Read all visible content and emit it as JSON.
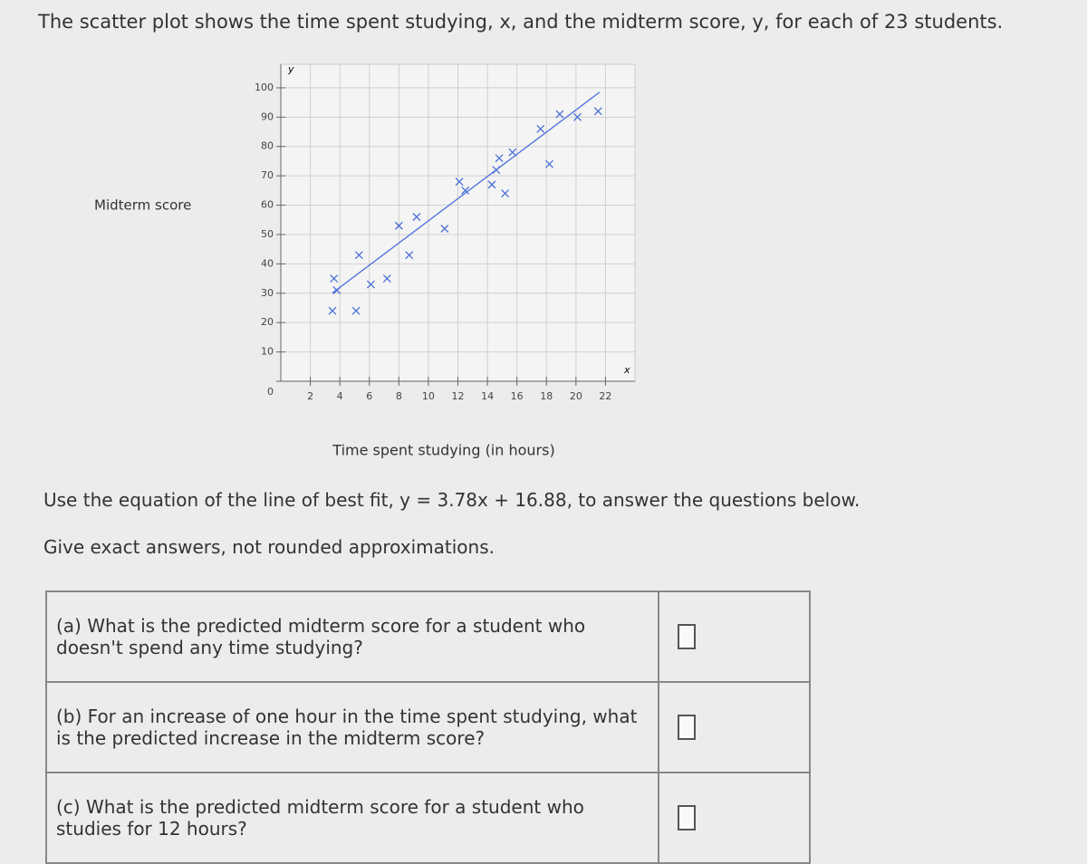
{
  "header": {
    "title": "The scatter plot shows the time spent studying, x, and the midterm score, y, for each of 23 students."
  },
  "chart_data": {
    "type": "scatter",
    "x_label": "Time spent studying (in hours)",
    "y_label": "Midterm score",
    "x_axis_symbol": "x",
    "y_axis_symbol": "y",
    "x": [
      3.6,
      3.5,
      5.1,
      5.3,
      3.8,
      6.1,
      7.2,
      8.7,
      8.0,
      9.2,
      11.1,
      12.1,
      12.5,
      14.3,
      15.2,
      14.6,
      14.8,
      15.7,
      18.2,
      17.6,
      18.9,
      20.1,
      21.5
    ],
    "values": [
      35,
      24,
      24,
      43,
      31,
      33,
      35,
      43,
      53,
      56,
      52,
      68,
      65,
      67,
      64,
      72,
      76,
      78,
      74,
      86,
      91,
      90,
      92
    ],
    "color": "#4a6fd8",
    "fit": {
      "x": [
        3.5,
        21.6
      ],
      "y": [
        30.1,
        98.5
      ]
    },
    "xlim": [
      0,
      24
    ],
    "ylim": [
      0,
      108
    ],
    "xticks": [
      2,
      4,
      6,
      8,
      10,
      12,
      14,
      16,
      18,
      20,
      22
    ],
    "yticks": [
      0,
      10,
      20,
      30,
      40,
      50,
      60,
      70,
      80,
      90,
      100
    ],
    "grid": true
  },
  "instructions": [
    "Use the equation of the line of best fit, y = 3.78x + 16.88, to answer the questions below.",
    "Give exact answers, not rounded approximations."
  ],
  "questions": [
    "(a) What is the predicted midterm score for a student who doesn't spend any time studying?",
    "(b) For an increase of one hour in the time spent studying, what is the predicted increase in the midterm score?",
    "(c) What is the predicted midterm score for a student who studies for 12 hours?"
  ]
}
